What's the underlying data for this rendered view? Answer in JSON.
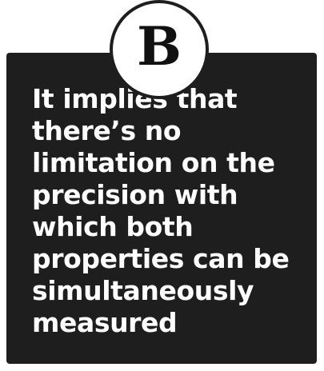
{
  "option": {
    "letter": "B",
    "text": "It implies that there’s no limitation on the precision with which both properties can be simultaneously measured"
  },
  "colors": {
    "card_background": "#1e1e1e",
    "text": "#ffffff",
    "badge_background": "#ffffff",
    "badge_letter": "#111111"
  }
}
